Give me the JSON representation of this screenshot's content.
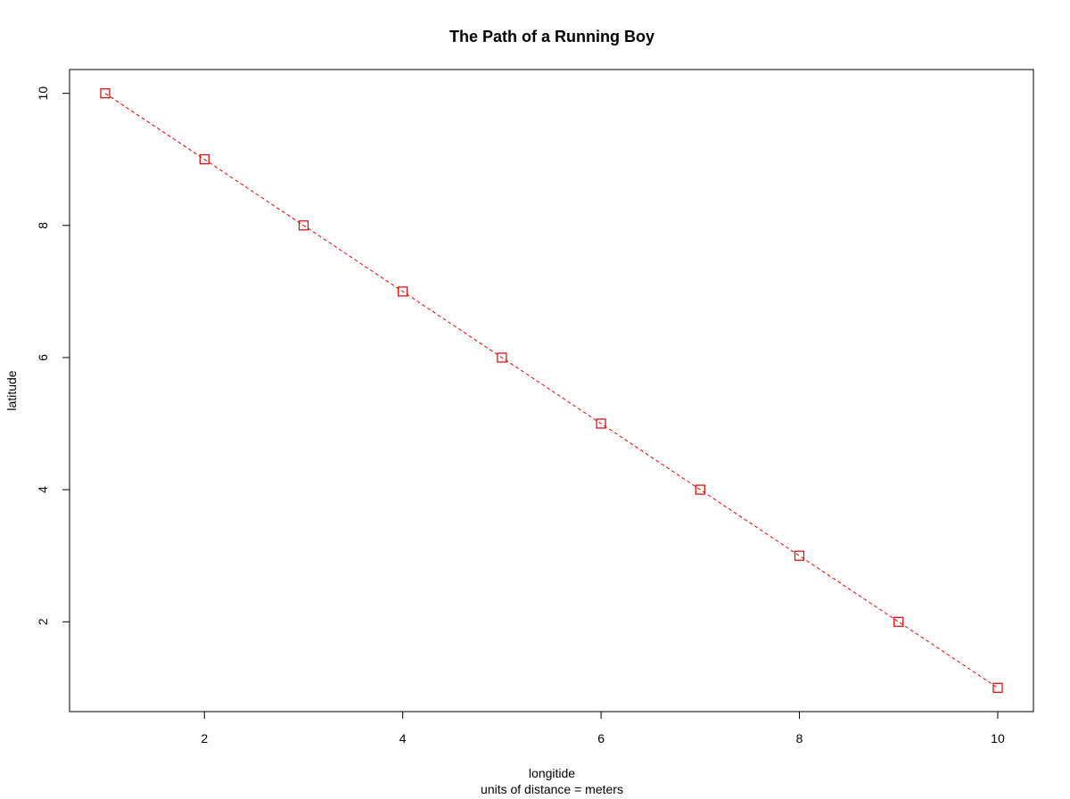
{
  "chart_data": {
    "type": "line",
    "title": "The Path of a Running Boy",
    "xlabel": "longitide",
    "subtitle": "units of distance = meters",
    "ylabel": "latitude",
    "x": [
      1,
      2,
      3,
      4,
      5,
      6,
      7,
      8,
      9,
      10
    ],
    "y": [
      10,
      9,
      8,
      7,
      6,
      5,
      4,
      3,
      2,
      1
    ],
    "xlim": [
      0.64,
      10.36
    ],
    "ylim": [
      0.64,
      10.36
    ],
    "xticks": [
      2,
      4,
      6,
      8,
      10
    ],
    "yticks": [
      2,
      4,
      6,
      8,
      10
    ],
    "marker": "open-square",
    "line_style": "dashed",
    "color": "#e00000",
    "grid": false,
    "legend": "none"
  }
}
